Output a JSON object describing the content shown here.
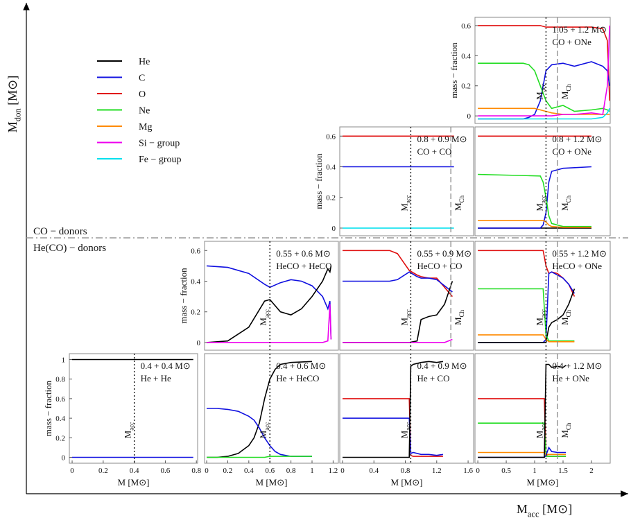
{
  "y_axis_label": {
    "text": "M",
    "sub": "don",
    "unit": " [M⊙]"
  },
  "x_axis_label": {
    "text": "M",
    "sub": "acc",
    "unit": " [M⊙]"
  },
  "groups": [
    "CO − donors",
    "He(CO) − donors"
  ],
  "legend": [
    {
      "name": "He",
      "color": "#000000"
    },
    {
      "name": "C",
      "color": "#1010e0"
    },
    {
      "name": "O",
      "color": "#e01010"
    },
    {
      "name": "Ne",
      "color": "#22dd22"
    },
    {
      "name": "Mg",
      "color": "#ff8a00"
    },
    {
      "name": "Si − group",
      "color": "#ee00ee"
    },
    {
      "name": "Fe − group",
      "color": "#00e0ee"
    }
  ],
  "chart_data": [
    {
      "type": "line",
      "title": "1.05 + 1.2 M⊙",
      "subtitle": "CO + ONe",
      "ylabel": "mass − fraction",
      "xlim": [
        -0.05,
        2.33
      ],
      "ylim": [
        -0.05,
        0.655
      ],
      "yticks": [
        0,
        0.2,
        0.4,
        0.6
      ],
      "x": [
        0,
        0.8,
        0.9,
        1.0,
        1.1,
        1.2,
        1.3,
        1.5,
        1.7,
        2.0,
        2.2,
        2.28,
        2.32
      ],
      "series": [
        {
          "name": "O",
          "values": [
            0.6,
            0.6,
            0.6,
            0.6,
            0.6,
            0.59,
            0.59,
            0.59,
            0.59,
            0.59,
            0.58,
            0.5,
            0.1
          ]
        },
        {
          "name": "C",
          "values": [
            -0.02,
            -0.02,
            -0.01,
            0.01,
            0.1,
            0.3,
            0.34,
            0.35,
            0.33,
            0.36,
            0.33,
            0.3,
            0.2
          ]
        },
        {
          "name": "Ne",
          "values": [
            0.35,
            0.35,
            0.34,
            0.3,
            0.2,
            0.1,
            0.05,
            0.07,
            0.03,
            0.04,
            0.05,
            0.04,
            0.03
          ]
        },
        {
          "name": "Mg",
          "values": [
            0.05,
            0.05,
            0.05,
            0.05,
            0.04,
            0.03,
            0.02,
            0.01,
            0.01,
            0.01,
            0.01,
            0.01,
            0.01
          ]
        },
        {
          "name": "Si − group",
          "values": [
            0,
            0,
            0,
            0,
            0,
            0,
            0,
            0.01,
            0.01,
            0.02,
            0.01,
            0.2,
            0.6
          ]
        },
        {
          "name": "Fe − group",
          "values": [
            -0.02,
            -0.02,
            -0.02,
            -0.02,
            -0.02,
            -0.02,
            -0.02,
            -0.02,
            -0.02,
            -0.02,
            -0.01,
            0.02,
            0.05
          ]
        }
      ],
      "vlines": [
        {
          "x": 1.2,
          "label": "M",
          "sub": "acc",
          "style": "dotted"
        },
        {
          "x": 1.4,
          "label": "M",
          "sub": "Ch",
          "style": "dashed"
        }
      ]
    },
    {
      "type": "line",
      "title": "0.8 + 0.9 M⊙",
      "subtitle": "CO + CO",
      "ylabel": "mass − fraction",
      "xlim": [
        -0.035,
        1.67
      ],
      "ylim": [
        -0.05,
        0.66
      ],
      "yticks": [
        0,
        0.2,
        0.4,
        0.6
      ],
      "x": [
        0,
        1.42
      ],
      "series": [
        {
          "name": "O",
          "values": [
            0.6,
            0.6
          ]
        },
        {
          "name": "C",
          "values": [
            0.4,
            0.4
          ]
        },
        {
          "name": "Fe − group",
          "values": [
            0,
            0
          ]
        }
      ],
      "vlines": [
        {
          "x": 0.87,
          "label": "M",
          "sub": "acc",
          "style": "dotted"
        },
        {
          "x": 1.38,
          "label": "M",
          "sub": "Ch",
          "style": "dashed"
        }
      ]
    },
    {
      "type": "line",
      "title": "0.8 + 1.2 M⊙",
      "subtitle": "CO + ONe",
      "xlim": [
        -0.05,
        2.33
      ],
      "ylim": [
        -0.05,
        0.66
      ],
      "x": [
        0,
        1.1,
        1.15,
        1.2,
        1.25,
        1.3,
        1.5,
        2.0
      ],
      "series": [
        {
          "name": "O",
          "values": [
            0.6,
            0.6,
            0.6,
            0.6,
            0.6,
            0.6,
            0.6,
            0.6
          ]
        },
        {
          "name": "He",
          "values": [
            0,
            0,
            0,
            0,
            0,
            0,
            0,
            0
          ]
        },
        {
          "name": "C",
          "values": [
            0,
            0,
            0.02,
            0.1,
            0.3,
            0.37,
            0.39,
            0.4
          ]
        },
        {
          "name": "Ne",
          "values": [
            0.35,
            0.34,
            0.3,
            0.2,
            0.08,
            0.03,
            0.01,
            0.01
          ]
        },
        {
          "name": "Mg",
          "values": [
            0.05,
            0.05,
            0.05,
            0.04,
            0.02,
            0.01,
            0.005,
            0.005
          ]
        }
      ],
      "vlines": [
        {
          "x": 1.2,
          "label": "M",
          "sub": "acc",
          "style": "dotted"
        },
        {
          "x": 1.4,
          "label": "M",
          "sub": "Ch",
          "style": "dashed"
        }
      ]
    },
    {
      "type": "line",
      "title": "0.55 + 0.6 M⊙",
      "subtitle": "HeCO + HeCO",
      "ylabel": "mass − fraction",
      "xlim": [
        -0.02,
        1.25
      ],
      "ylim": [
        -0.05,
        0.66
      ],
      "yticks": [
        0,
        0.2,
        0.4,
        0.6
      ],
      "x": [
        0,
        0.2,
        0.4,
        0.55,
        0.6,
        0.7,
        0.8,
        0.9,
        1.0,
        1.1,
        1.15,
        1.17,
        1.18
      ],
      "series": [
        {
          "name": "C",
          "values": [
            0.5,
            0.49,
            0.45,
            0.38,
            0.36,
            0.39,
            0.41,
            0.4,
            0.37,
            0.3,
            0.22,
            0.27,
            0.02
          ]
        },
        {
          "name": "He",
          "values": [
            0,
            0.01,
            0.1,
            0.27,
            0.28,
            0.2,
            0.18,
            0.22,
            0.3,
            0.4,
            0.48,
            0.46,
            0.5
          ]
        },
        {
          "name": "Si − group",
          "values": [
            0,
            0,
            0,
            0,
            0,
            0,
            0,
            0,
            0,
            0,
            0.01,
            0.25,
            0.02
          ]
        }
      ],
      "vlines": [
        {
          "x": 0.6,
          "label": "M",
          "sub": "acc",
          "style": "dotted"
        }
      ]
    },
    {
      "type": "line",
      "title": "0.55 + 0.9 M⊙",
      "subtitle": "HeCO + CO",
      "xlim": [
        -0.035,
        1.67
      ],
      "ylim": [
        -0.05,
        0.66
      ],
      "x": [
        0,
        0.6,
        0.7,
        0.85,
        0.95,
        1.0,
        1.1,
        1.2,
        1.3,
        1.4
      ],
      "series": [
        {
          "name": "O",
          "values": [
            0.6,
            0.6,
            0.58,
            0.47,
            0.44,
            0.43,
            0.42,
            0.42,
            0.36,
            0.3
          ]
        },
        {
          "name": "C",
          "values": [
            0.4,
            0.4,
            0.41,
            0.46,
            0.43,
            0.42,
            0.42,
            0.41,
            0.37,
            0.33
          ]
        },
        {
          "name": "He",
          "values": [
            0,
            0,
            0,
            0,
            0.01,
            0.15,
            0.17,
            0.18,
            0.25,
            0.4
          ]
        },
        {
          "name": "Si − group",
          "values": [
            0,
            0,
            0,
            0,
            0,
            0,
            0,
            0,
            0,
            0.02
          ]
        }
      ],
      "vlines": [
        {
          "x": 0.87,
          "label": "M",
          "sub": "acc",
          "style": "dotted"
        },
        {
          "x": 1.38,
          "label": "M",
          "sub": "Ch",
          "style": "dashed"
        }
      ]
    },
    {
      "type": "line",
      "title": "0.55 + 1.2 M⊙",
      "subtitle": "HeCO + ONe",
      "xlim": [
        -0.05,
        2.33
      ],
      "ylim": [
        -0.05,
        0.66
      ],
      "x": [
        0,
        1.15,
        1.2,
        1.25,
        1.3,
        1.4,
        1.5,
        1.6,
        1.7
      ],
      "series": [
        {
          "name": "O",
          "values": [
            0.6,
            0.6,
            0.5,
            0.45,
            0.46,
            0.45,
            0.42,
            0.38,
            0.3
          ]
        },
        {
          "name": "C",
          "values": [
            0,
            0,
            0.02,
            0.45,
            0.46,
            0.44,
            0.42,
            0.38,
            0.32
          ]
        },
        {
          "name": "He",
          "values": [
            0,
            0,
            0,
            0.1,
            0.13,
            0.15,
            0.18,
            0.25,
            0.35
          ]
        },
        {
          "name": "Ne",
          "values": [
            0.35,
            0.35,
            0.05,
            0.01,
            0.01,
            0.01,
            0.01,
            0.01,
            0.01
          ]
        },
        {
          "name": "Mg",
          "values": [
            0.05,
            0.05,
            0.02,
            0.005,
            0.005,
            0.005,
            0.005,
            0.005,
            0.005
          ]
        }
      ],
      "vlines": [
        {
          "x": 1.2,
          "label": "M",
          "sub": "acc",
          "style": "dotted"
        },
        {
          "x": 1.4,
          "label": "M",
          "sub": "Ch",
          "style": "dashed"
        }
      ]
    },
    {
      "type": "line",
      "title": "0.4 + 0.4 M⊙",
      "subtitle": "He + He",
      "ylabel": "mass − fraction",
      "xlabel": "M [M⊙]",
      "xlim": [
        -0.018,
        0.808
      ],
      "ylim": [
        -0.06,
        1.06
      ],
      "yticks": [
        0,
        0.2,
        0.4,
        0.6,
        0.8,
        1
      ],
      "xticks": [
        0,
        0.2,
        0.4,
        0.6,
        0.8
      ],
      "x": [
        0,
        0.4,
        0.78
      ],
      "series": [
        {
          "name": "He",
          "values": [
            1,
            1,
            1
          ]
        },
        {
          "name": "C",
          "values": [
            0,
            0,
            0
          ]
        }
      ],
      "vlines": [
        {
          "x": 0.4,
          "label": "M",
          "sub": "acc",
          "style": "dotted"
        }
      ]
    },
    {
      "type": "line",
      "title": "0.4 + 0.6 M⊙",
      "subtitle": "He + HeCO",
      "xlabel": "M [M⊙]",
      "xlim": [
        -0.02,
        1.25
      ],
      "ylim": [
        -0.06,
        1.06
      ],
      "xticks": [
        0,
        0.2,
        0.4,
        0.6,
        0.8,
        1,
        1.2
      ],
      "x": [
        0,
        0.1,
        0.2,
        0.3,
        0.4,
        0.45,
        0.5,
        0.55,
        0.6,
        0.65,
        0.7,
        0.8,
        1.0
      ],
      "series": [
        {
          "name": "He",
          "values": [
            0,
            0,
            0.01,
            0.04,
            0.12,
            0.2,
            0.35,
            0.6,
            0.8,
            0.9,
            0.95,
            0.97,
            0.98
          ]
        },
        {
          "name": "C",
          "values": [
            0.5,
            0.5,
            0.49,
            0.47,
            0.42,
            0.38,
            0.3,
            0.2,
            0.12,
            0.06,
            0.03,
            0.01,
            0.01
          ]
        },
        {
          "name": "Ne",
          "values": [
            0,
            0,
            0,
            0,
            0,
            0,
            0,
            0,
            0.01,
            0.01,
            0.01,
            0.01,
            0.01
          ]
        }
      ],
      "vlines": [
        {
          "x": 0.6,
          "label": "M",
          "sub": "acc",
          "style": "dotted"
        }
      ]
    },
    {
      "type": "line",
      "title": "0.4 + 0.9 M⊙",
      "subtitle": "He + CO",
      "xlabel": "M [M⊙]",
      "xlim": [
        -0.035,
        1.67
      ],
      "ylim": [
        -0.06,
        1.06
      ],
      "xticks": [
        0,
        0.4,
        0.8,
        1.2,
        1.6
      ],
      "x": [
        0,
        0.85,
        0.87,
        0.9,
        1.0,
        1.1,
        1.2,
        1.28
      ],
      "series": [
        {
          "name": "O",
          "values": [
            0.6,
            0.6,
            0.02,
            0.01,
            0.01,
            0.01,
            0.01,
            0.01
          ]
        },
        {
          "name": "C",
          "values": [
            0.4,
            0.4,
            0.04,
            0.05,
            0.03,
            0.03,
            0.02,
            0.03
          ]
        },
        {
          "name": "He",
          "values": [
            0,
            0,
            0.93,
            0.95,
            0.97,
            0.98,
            0.97,
            0.98
          ]
        }
      ],
      "vlines": [
        {
          "x": 0.87,
          "label": "M",
          "sub": "acc",
          "style": "dotted"
        }
      ]
    },
    {
      "type": "line",
      "title": "0.4 + 1.2 M⊙",
      "subtitle": "He + ONe",
      "xlabel": "M [M⊙]",
      "xlim": [
        -0.05,
        2.33
      ],
      "ylim": [
        -0.06,
        1.06
      ],
      "xticks": [
        0,
        0.5,
        1,
        1.5,
        2
      ],
      "x": [
        0,
        1.17,
        1.2,
        1.25,
        1.3,
        1.4,
        1.5,
        1.55
      ],
      "series": [
        {
          "name": "O",
          "values": [
            0.6,
            0.6,
            0.02,
            0.01,
            0.01,
            0.01,
            0.01,
            0.01
          ]
        },
        {
          "name": "Ne",
          "values": [
            0.35,
            0.35,
            0.01,
            0.01,
            0.01,
            0.01,
            0.01,
            0.01
          ]
        },
        {
          "name": "Mg",
          "values": [
            0.05,
            0.05,
            0.03,
            0.03,
            0.03,
            0.03,
            0.03,
            0.03
          ]
        },
        {
          "name": "C",
          "values": [
            0,
            0,
            0.02,
            0.1,
            0.06,
            0.05,
            0.05,
            0.05
          ]
        },
        {
          "name": "He",
          "values": [
            0,
            0,
            0.95,
            0.95,
            0.92,
            0.93,
            0.92,
            0.94
          ]
        }
      ],
      "vlines": [
        {
          "x": 1.2,
          "label": "M",
          "sub": "acc",
          "style": "dotted"
        },
        {
          "x": 1.4,
          "label": "M",
          "sub": "Ch",
          "style": "dashed"
        }
      ]
    }
  ]
}
